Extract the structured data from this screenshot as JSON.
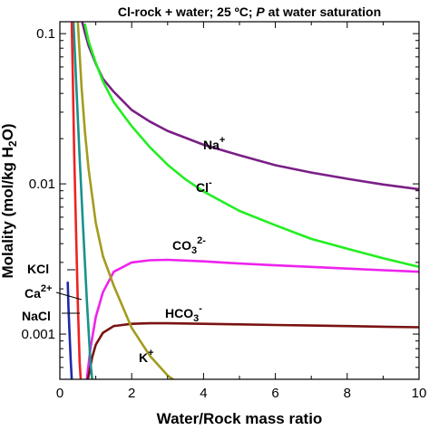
{
  "chart_data": {
    "type": "line",
    "title": "Cl-rock + water;  25 ºC;  P at water saturation",
    "title_parts": {
      "pre": "Cl-rock + water;  25 ºC;  ",
      "italic": "P",
      "post": " at water saturation"
    },
    "xlabel": "Water/Rock mass ratio",
    "ylabel": "Molality (mol/kg H2O)",
    "ylabel_parts": {
      "pre": "Molality (mol/kg H",
      "sub": "2",
      "post": "O)"
    },
    "xlim": [
      0,
      10
    ],
    "ylim": [
      0.0005,
      0.12
    ],
    "yscale": "log",
    "grid": false,
    "x_ticks": [
      0,
      2,
      4,
      6,
      8,
      10
    ],
    "x_tick_labels": [
      "0",
      "2",
      "4",
      "6",
      "8",
      "10"
    ],
    "y_ticks": [
      0.001,
      0.01,
      0.1
    ],
    "y_tick_labels": [
      "0.001",
      "0.01",
      "0.1"
    ],
    "series": [
      {
        "name": "Na+",
        "label_main": "Na",
        "label_sup": "+",
        "label_sub": "",
        "label_sup2": "",
        "color": "#7a1f86",
        "x": [
          0.62,
          0.7,
          0.8,
          1.0,
          1.2,
          1.5,
          2,
          2.5,
          3,
          4,
          5,
          6,
          7,
          8,
          9,
          10
        ],
        "y": [
          0.12,
          0.101,
          0.083,
          0.063,
          0.05,
          0.041,
          0.031,
          0.026,
          0.0225,
          0.0182,
          0.0155,
          0.0133,
          0.0119,
          0.0108,
          0.0099,
          0.0092
        ]
      },
      {
        "name": "Cl-",
        "label_main": "Cl",
        "label_sup": "-",
        "label_sub": "",
        "label_sup2": "",
        "color": "#22ee22",
        "x": [
          0.7,
          0.8,
          1.0,
          1.2,
          1.5,
          2,
          2.5,
          3,
          3.5,
          4,
          5,
          6,
          7,
          8,
          9,
          10
        ],
        "y": [
          0.115,
          0.089,
          0.064,
          0.048,
          0.035,
          0.0242,
          0.0176,
          0.0134,
          0.0107,
          0.0089,
          0.0066,
          0.0053,
          0.0043,
          0.0037,
          0.0032,
          0.0028
        ]
      },
      {
        "name": "CO3 2-",
        "label_main": "CO",
        "label_sup": "",
        "label_sub": "3",
        "label_sup2": "2-",
        "color": "#ee22ee",
        "x": [
          0.75,
          0.85,
          1.0,
          1.2,
          1.5,
          2,
          2.5,
          3,
          4,
          5,
          6,
          7,
          8,
          9,
          10
        ],
        "y": [
          0.0005,
          0.0008,
          0.0013,
          0.0019,
          0.0026,
          0.003,
          0.0031,
          0.00312,
          0.00305,
          0.00295,
          0.00287,
          0.0028,
          0.00273,
          0.00266,
          0.0026
        ]
      },
      {
        "name": "HCO3-",
        "label_main": "HCO",
        "label_sup": "",
        "label_sub": "3",
        "label_sup2": "-",
        "color": "#7a1212",
        "x": [
          0.78,
          0.9,
          1.0,
          1.2,
          1.5,
          2,
          2.5,
          3,
          4,
          5,
          6,
          7,
          8,
          9,
          10
        ],
        "y": [
          0.0005,
          0.0007,
          0.00085,
          0.00102,
          0.00113,
          0.00117,
          0.00118,
          0.00118,
          0.00117,
          0.00116,
          0.00115,
          0.00114,
          0.00113,
          0.00112,
          0.00111
        ]
      },
      {
        "name": "K+",
        "label_main": "K",
        "label_sup": "+",
        "label_sub": "",
        "label_sup2": "",
        "color": "#a39c1e",
        "x": [
          0.5,
          0.6,
          0.7,
          0.8,
          1.0,
          1.2,
          1.5,
          2,
          2.5,
          3,
          3.15
        ],
        "y": [
          0.12,
          0.045,
          0.022,
          0.0125,
          0.0055,
          0.0033,
          0.0021,
          0.0011,
          0.00072,
          0.00053,
          0.0005
        ]
      },
      {
        "name": "KCl",
        "label_main": "KCl",
        "label_sup": "",
        "label_sub": "",
        "label_sup2": "",
        "color": "#1f2aa8",
        "x": [
          0.22,
          0.24,
          0.27,
          0.3,
          0.33
        ],
        "y": [
          0.0022,
          0.0015,
          0.001,
          0.00068,
          0.0005
        ]
      },
      {
        "name": "Ca2+",
        "label_main": "Ca",
        "label_sup": "2+",
        "label_sub": "",
        "label_sup2": "",
        "color": "#18928c",
        "x": [
          0.38,
          0.45,
          0.55,
          0.65,
          0.75,
          0.85,
          0.9
        ],
        "y": [
          0.12,
          0.05,
          0.015,
          0.005,
          0.0017,
          0.00065,
          0.0005
        ]
      },
      {
        "name": "NaCl",
        "label_main": "NaCl",
        "label_sup": "",
        "label_sub": "",
        "label_sup2": "",
        "color": "#ee2222",
        "x": [
          0.33,
          0.36,
          0.4,
          0.45,
          0.5,
          0.55,
          0.58
        ],
        "y": [
          0.12,
          0.05,
          0.016,
          0.005,
          0.0016,
          0.00065,
          0.0005
        ]
      }
    ]
  }
}
